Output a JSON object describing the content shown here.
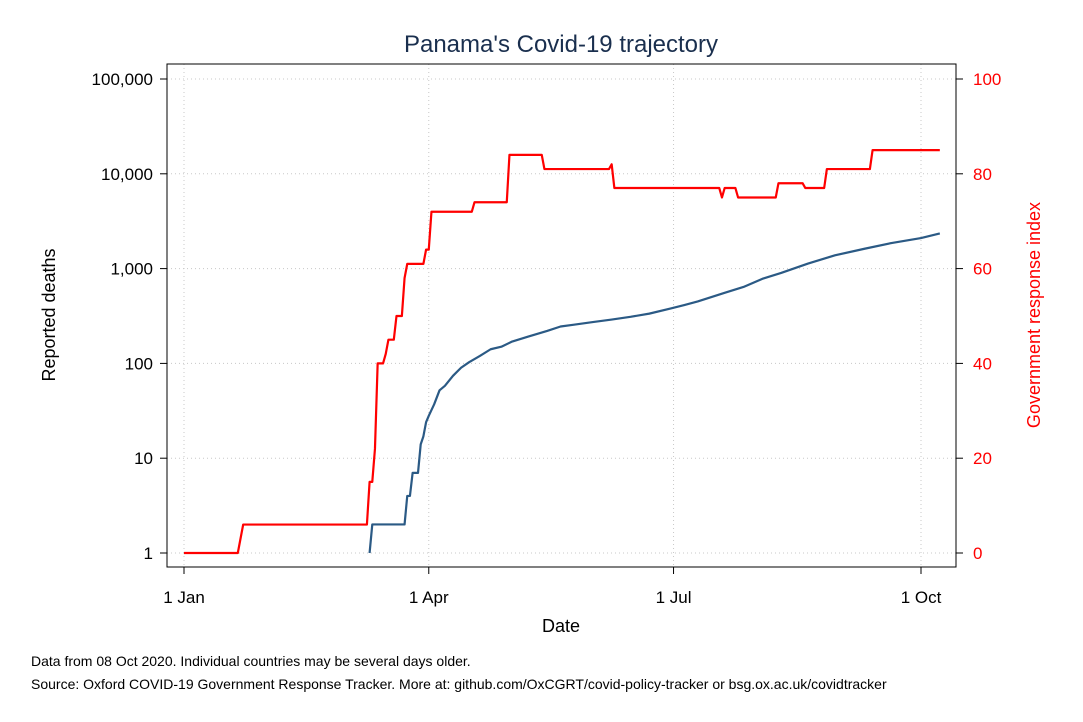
{
  "chart_data": {
    "type": "line",
    "title": "Panama's Covid-19 trajectory",
    "xlabel": "Date",
    "ylabel_left": "Reported deaths",
    "ylabel_right": "Government response index",
    "x_ticks": [
      {
        "date": "2020-01-01",
        "label": "1 Jan"
      },
      {
        "date": "2020-04-01",
        "label": "1 Apr"
      },
      {
        "date": "2020-07-01",
        "label": "1 Jul"
      },
      {
        "date": "2020-10-01",
        "label": "1 Oct"
      }
    ],
    "xlim": [
      "2020-01-01",
      "2020-10-08"
    ],
    "y_left": {
      "scale": "log",
      "ylim": [
        1,
        100000
      ],
      "ticks": [
        {
          "value": 1,
          "label": "1"
        },
        {
          "value": 10,
          "label": "10"
        },
        {
          "value": 100,
          "label": "100"
        },
        {
          "value": 1000,
          "label": "1,000"
        },
        {
          "value": 10000,
          "label": "10,000"
        },
        {
          "value": 100000,
          "label": "100,000"
        }
      ]
    },
    "y_right": {
      "scale": "linear",
      "ylim": [
        0,
        100
      ],
      "ticks": [
        {
          "value": 0,
          "label": "0"
        },
        {
          "value": 20,
          "label": "20"
        },
        {
          "value": 40,
          "label": "40"
        },
        {
          "value": 60,
          "label": "60"
        },
        {
          "value": 80,
          "label": "80"
        },
        {
          "value": 100,
          "label": "100"
        }
      ]
    },
    "grid": true,
    "series": [
      {
        "axis": "left",
        "color": "#2b5a85",
        "step": false,
        "points": [
          [
            "2020-03-10",
            1
          ],
          [
            "2020-03-11",
            2
          ],
          [
            "2020-03-23",
            2
          ],
          [
            "2020-03-24",
            4
          ],
          [
            "2020-03-25",
            4
          ],
          [
            "2020-03-26",
            7
          ],
          [
            "2020-03-28",
            7
          ],
          [
            "2020-03-29",
            14
          ],
          [
            "2020-03-30",
            17
          ],
          [
            "2020-03-31",
            24
          ],
          [
            "2020-04-01",
            28
          ],
          [
            "2020-04-03",
            37
          ],
          [
            "2020-04-05",
            52
          ],
          [
            "2020-04-07",
            58
          ],
          [
            "2020-04-10",
            74
          ],
          [
            "2020-04-13",
            90
          ],
          [
            "2020-04-16",
            103
          ],
          [
            "2020-04-20",
            120
          ],
          [
            "2020-04-24",
            141
          ],
          [
            "2020-04-28",
            150
          ],
          [
            "2020-05-02",
            170
          ],
          [
            "2020-05-08",
            192
          ],
          [
            "2020-05-15",
            220
          ],
          [
            "2020-05-20",
            245
          ],
          [
            "2020-05-25",
            256
          ],
          [
            "2020-06-01",
            273
          ],
          [
            "2020-06-08",
            290
          ],
          [
            "2020-06-15",
            310
          ],
          [
            "2020-06-22",
            335
          ],
          [
            "2020-06-30",
            380
          ],
          [
            "2020-07-05",
            413
          ],
          [
            "2020-07-10",
            450
          ],
          [
            "2020-07-20",
            555
          ],
          [
            "2020-07-27",
            640
          ],
          [
            "2020-08-03",
            780
          ],
          [
            "2020-08-10",
            900
          ],
          [
            "2020-08-20",
            1130
          ],
          [
            "2020-08-30",
            1380
          ],
          [
            "2020-09-10",
            1620
          ],
          [
            "2020-09-20",
            1860
          ],
          [
            "2020-10-01",
            2100
          ],
          [
            "2020-10-08",
            2350
          ]
        ]
      },
      {
        "axis": "right",
        "color": "#ff0000",
        "step": true,
        "points": [
          [
            "2020-01-01",
            0
          ],
          [
            "2020-01-21",
            0
          ],
          [
            "2020-01-23",
            6
          ],
          [
            "2020-03-09",
            6
          ],
          [
            "2020-03-10",
            15
          ],
          [
            "2020-03-11",
            15
          ],
          [
            "2020-03-12",
            22
          ],
          [
            "2020-03-13",
            40
          ],
          [
            "2020-03-15",
            40
          ],
          [
            "2020-03-16",
            42
          ],
          [
            "2020-03-17",
            45
          ],
          [
            "2020-03-19",
            45
          ],
          [
            "2020-03-20",
            50
          ],
          [
            "2020-03-22",
            50
          ],
          [
            "2020-03-23",
            58
          ],
          [
            "2020-03-24",
            61
          ],
          [
            "2020-03-30",
            61
          ],
          [
            "2020-03-31",
            64
          ],
          [
            "2020-04-01",
            64
          ],
          [
            "2020-04-02",
            72
          ],
          [
            "2020-04-17",
            72
          ],
          [
            "2020-04-18",
            74
          ],
          [
            "2020-04-30",
            74
          ],
          [
            "2020-05-01",
            84
          ],
          [
            "2020-05-13",
            84
          ],
          [
            "2020-05-14",
            81
          ],
          [
            "2020-06-07",
            81
          ],
          [
            "2020-06-08",
            82
          ],
          [
            "2020-06-09",
            77
          ],
          [
            "2020-07-18",
            77
          ],
          [
            "2020-07-19",
            75
          ],
          [
            "2020-07-20",
            77
          ],
          [
            "2020-07-24",
            77
          ],
          [
            "2020-07-25",
            75
          ],
          [
            "2020-08-08",
            75
          ],
          [
            "2020-08-09",
            78
          ],
          [
            "2020-08-18",
            78
          ],
          [
            "2020-08-19",
            77
          ],
          [
            "2020-08-26",
            77
          ],
          [
            "2020-08-27",
            81
          ],
          [
            "2020-09-12",
            81
          ],
          [
            "2020-09-13",
            85
          ],
          [
            "2020-10-08",
            85
          ]
        ]
      }
    ]
  },
  "notes": {
    "line1": "Data from 08 Oct 2020. Individual countries may be several days older.",
    "line2": "Source: Oxford COVID-19 Government Response Tracker. More at: github.com/OxCGRT/covid-policy-tracker or bsg.ox.ac.uk/covidtracker"
  }
}
